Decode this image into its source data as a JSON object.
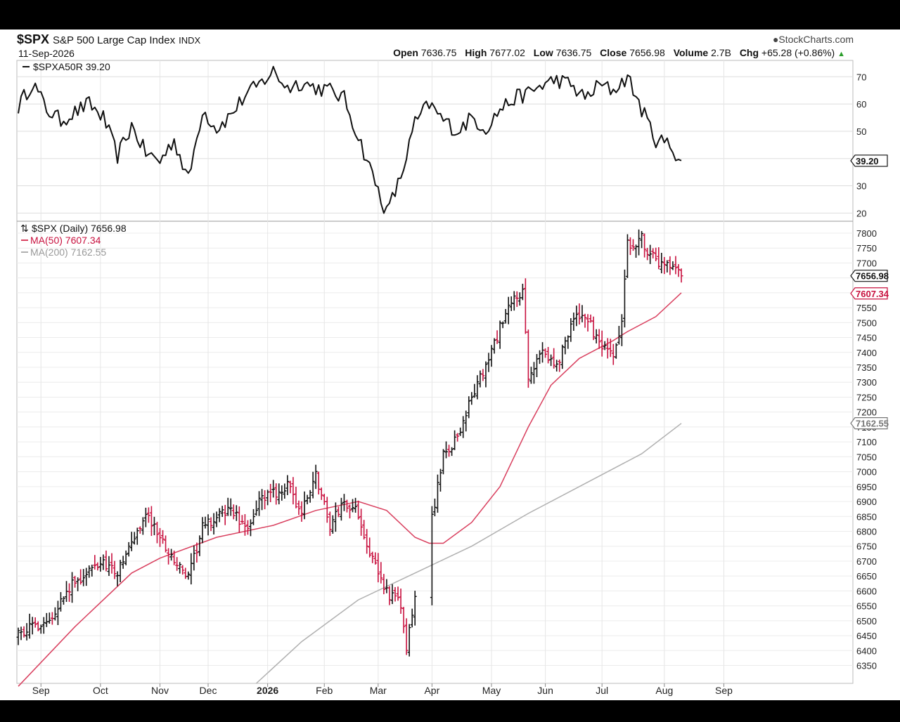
{
  "header": {
    "symbol": "$SPX",
    "name": "S&P 500 Large Cap Index",
    "exchange": "INDX",
    "date": "11-Sep-2026",
    "watermark": "StockCharts.com",
    "open_label": "Open",
    "open": "7636.75",
    "high_label": "High",
    "high": "7677.02",
    "low_label": "Low",
    "low": "7636.75",
    "close_label": "Close",
    "close": "7656.98",
    "volume_label": "Volume",
    "volume": "2.7B",
    "chg_label": "Chg",
    "chg": "+65.28 (+0.86%)"
  },
  "colors": {
    "up": "#111111",
    "down": "#c8103e",
    "ma50": "#d9405f",
    "ma200": "#b0b0b0",
    "grid": "#dddddd"
  },
  "chart_data": [
    {
      "type": "line",
      "legend": "$SPXA50R 39.20",
      "ylim": [
        17,
        76
      ],
      "yticks": [
        70,
        60,
        50,
        40,
        30,
        20
      ],
      "last_value": "39.20",
      "x": "daily, 2025-08-20 to 2026-09-11",
      "keypoints": [
        [
          0,
          59
        ],
        [
          5,
          68
        ],
        [
          10,
          58
        ],
        [
          15,
          54
        ],
        [
          20,
          57
        ],
        [
          25,
          60
        ],
        [
          30,
          55
        ],
        [
          35,
          41
        ],
        [
          40,
          52
        ],
        [
          45,
          42
        ],
        [
          50,
          39
        ],
        [
          55,
          47
        ],
        [
          60,
          32
        ],
        [
          65,
          58
        ],
        [
          70,
          51
        ],
        [
          75,
          56
        ],
        [
          80,
          63
        ],
        [
          85,
          67
        ],
        [
          90,
          72
        ],
        [
          95,
          66
        ],
        [
          100,
          68
        ],
        [
          105,
          66
        ],
        [
          110,
          65
        ],
        [
          115,
          62
        ],
        [
          120,
          48
        ],
        [
          125,
          34
        ],
        [
          130,
          20
        ],
        [
          135,
          33
        ],
        [
          140,
          53
        ],
        [
          145,
          60
        ],
        [
          150,
          54
        ],
        [
          155,
          50
        ],
        [
          160,
          55
        ],
        [
          165,
          51
        ],
        [
          170,
          58
        ],
        [
          175,
          62
        ],
        [
          180,
          64
        ],
        [
          185,
          67
        ],
        [
          190,
          69
        ],
        [
          195,
          67
        ],
        [
          200,
          62
        ],
        [
          205,
          67
        ],
        [
          210,
          65
        ],
        [
          215,
          70
        ],
        [
          220,
          58
        ],
        [
          225,
          47
        ],
        [
          230,
          45
        ],
        [
          234,
          39
        ]
      ]
    },
    {
      "type": "ohlc",
      "title": "$SPX (Daily) 7656.98",
      "ylim": [
        6290,
        7840
      ],
      "yticks": [
        7800,
        7750,
        7700,
        7650,
        7600,
        7550,
        7500,
        7450,
        7400,
        7350,
        7300,
        7250,
        7200,
        7150,
        7100,
        7050,
        7000,
        6950,
        6900,
        6850,
        6800,
        6750,
        6700,
        6650,
        6600,
        6550,
        6500,
        6450,
        6400,
        6350
      ],
      "last_close": "7656.98",
      "close_keypoints": [
        [
          0,
          6460
        ],
        [
          10,
          6500
        ],
        [
          20,
          6630
        ],
        [
          30,
          6700
        ],
        [
          35,
          6660
        ],
        [
          45,
          6860
        ],
        [
          55,
          6700
        ],
        [
          60,
          6640
        ],
        [
          65,
          6810
        ],
        [
          75,
          6880
        ],
        [
          80,
          6800
        ],
        [
          85,
          6900
        ],
        [
          95,
          6950
        ],
        [
          100,
          6860
        ],
        [
          105,
          6990
        ],
        [
          110,
          6820
        ],
        [
          115,
          6900
        ],
        [
          120,
          6860
        ],
        [
          125,
          6700
        ],
        [
          130,
          6600
        ],
        [
          135,
          6550
        ],
        [
          137,
          6400
        ],
        [
          140,
          6580
        ],
        [
          142,
          6600
        ],
        [
          145,
          6800
        ],
        [
          150,
          7050
        ],
        [
          155,
          7120
        ],
        [
          160,
          7250
        ],
        [
          165,
          7350
        ],
        [
          170,
          7480
        ],
        [
          175,
          7580
        ],
        [
          178,
          7600
        ],
        [
          180,
          7300
        ],
        [
          185,
          7420
        ],
        [
          190,
          7350
        ],
        [
          195,
          7500
        ],
        [
          200,
          7530
        ],
        [
          205,
          7420
        ],
        [
          210,
          7380
        ],
        [
          213,
          7500
        ],
        [
          215,
          7760
        ],
        [
          220,
          7780
        ],
        [
          225,
          7700
        ],
        [
          230,
          7680
        ],
        [
          234,
          7657
        ]
      ],
      "gaps": [
        [
          140,
          146
        ]
      ],
      "series": [
        {
          "name": "MA(50) 7607.34",
          "last": "7607.34",
          "points": [
            [
              0,
              6280
            ],
            [
              20,
              6480
            ],
            [
              40,
              6660
            ],
            [
              50,
              6710
            ],
            [
              70,
              6780
            ],
            [
              90,
              6820
            ],
            [
              105,
              6870
            ],
            [
              115,
              6890
            ],
            [
              120,
              6900
            ],
            [
              130,
              6870
            ],
            [
              140,
              6780
            ],
            [
              145,
              6760
            ],
            [
              150,
              6760
            ],
            [
              160,
              6830
            ],
            [
              170,
              6950
            ],
            [
              180,
              7150
            ],
            [
              188,
              7290
            ],
            [
              198,
              7380
            ],
            [
              210,
              7440
            ],
            [
              215,
              7470
            ],
            [
              225,
              7520
            ],
            [
              234,
              7600
            ]
          ]
        },
        {
          "name": "MA(200) 7162.55",
          "last": "7162.55",
          "points": [
            [
              84,
              6290
            ],
            [
              100,
              6430
            ],
            [
              120,
              6570
            ],
            [
              140,
              6660
            ],
            [
              160,
              6750
            ],
            [
              180,
              6860
            ],
            [
              200,
              6960
            ],
            [
              220,
              7060
            ],
            [
              234,
              7162
            ]
          ]
        }
      ]
    }
  ],
  "x_axis": {
    "months": [
      {
        "label": "Sep",
        "i": 8,
        "bold": false
      },
      {
        "label": "Oct",
        "i": 29,
        "bold": false
      },
      {
        "label": "Nov",
        "i": 50,
        "bold": false
      },
      {
        "label": "Dec",
        "i": 67,
        "bold": false
      },
      {
        "label": "2026",
        "i": 88,
        "bold": true
      },
      {
        "label": "Feb",
        "i": 108,
        "bold": false
      },
      {
        "label": "Mar",
        "i": 127,
        "bold": false
      },
      {
        "label": "Apr",
        "i": 146,
        "bold": false
      },
      {
        "label": "May",
        "i": 167,
        "bold": false
      },
      {
        "label": "Jun",
        "i": 186,
        "bold": false
      },
      {
        "label": "Jul",
        "i": 206,
        "bold": false
      },
      {
        "label": "Aug",
        "i": 228,
        "bold": false
      },
      {
        "label": "Sep",
        "i": 249,
        "bold": false
      }
    ]
  }
}
